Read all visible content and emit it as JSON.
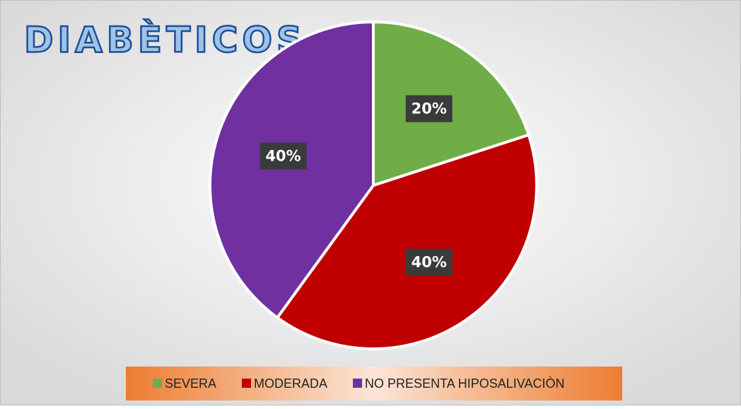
{
  "chart_data": {
    "type": "pie",
    "title": "DIABÈTICOS",
    "categories": [
      "SEVERA",
      "MODERADA",
      "NO PRESENTA HIPOSALIVACIÒN"
    ],
    "values": [
      20,
      40,
      40
    ],
    "value_labels": [
      "20%",
      "40%",
      "40%"
    ],
    "colors": [
      "#70ad47",
      "#c00000",
      "#7030a0"
    ],
    "legend": "bottom"
  }
}
